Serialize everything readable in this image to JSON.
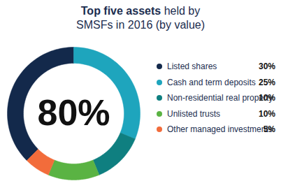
{
  "chart_data": {
    "type": "donut",
    "title": "Top five assets held by SMSFs in 2016 (by value)",
    "categories": [
      "Listed shares",
      "Cash and term deposits",
      "Non-residential real property",
      "Unlisted trusts",
      "Other managed investments"
    ],
    "values": [
      30,
      25,
      10,
      10,
      5
    ],
    "value_labels": [
      "30%",
      "25%",
      "10%",
      "10%",
      "5%"
    ],
    "colors": [
      "#13294b",
      "#1ea5bd",
      "#0f7f80",
      "#5ab343",
      "#f26c3b"
    ],
    "center_label": "80%",
    "legend": "right"
  }
}
